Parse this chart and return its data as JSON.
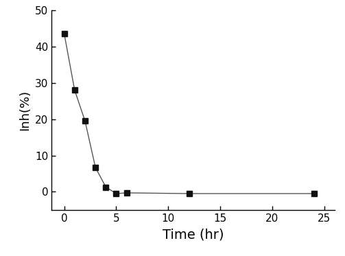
{
  "x": [
    0,
    1,
    2,
    3,
    4,
    5,
    6,
    12,
    24
  ],
  "y": [
    43.5,
    28.0,
    19.5,
    6.7,
    1.3,
    -0.5,
    -0.3,
    -0.5,
    -0.5
  ],
  "xlabel": "Time (hr)",
  "ylabel": "Inh(%)",
  "xlim": [
    -1.2,
    26
  ],
  "ylim": [
    -5,
    50
  ],
  "xticks": [
    0,
    5,
    10,
    15,
    20,
    25
  ],
  "yticks": [
    0,
    10,
    20,
    30,
    40,
    50
  ],
  "line_color": "#555555",
  "marker": "s",
  "marker_color": "#111111",
  "marker_size": 6,
  "line_width": 1.0,
  "background_color": "#ffffff",
  "xlabel_fontsize": 14,
  "ylabel_fontsize": 13,
  "tick_labelsize": 11
}
